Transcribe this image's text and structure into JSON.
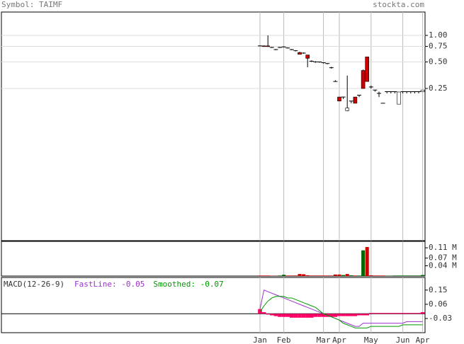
{
  "header": {
    "symbol": "Symbol: TAIMF",
    "site": "stockta.com"
  },
  "chart_data": [
    {
      "type": "candlestick",
      "categories": [
        "Jan",
        null,
        null,
        null,
        null,
        null,
        "Feb",
        null,
        null,
        null,
        null,
        null,
        null,
        null,
        null,
        null,
        "Mar",
        null,
        null,
        null,
        "Apr",
        null,
        null,
        null,
        null,
        null,
        null,
        null,
        "May",
        null,
        null,
        null,
        null,
        null,
        null,
        null,
        "Jun",
        null,
        null,
        null,
        null,
        "Apr"
      ],
      "open": [
        0.76,
        0.76,
        0.76,
        0.73,
        0.69,
        0.73,
        0.74,
        0.72,
        0.69,
        0.67,
        0.64,
        0.63,
        0.6,
        0.51,
        0.5,
        0.5,
        0.49,
        0.48,
        0.43,
        0.3,
        0.2,
        0.2,
        0.14,
        0.18,
        0.2,
        0.21,
        0.4,
        0.57,
        0.26,
        0.24,
        0.22,
        0.17,
        0.23,
        0.23,
        0.23,
        0.166,
        0.23,
        0.23,
        0.23,
        0.23,
        0.23,
        0.23
      ],
      "high": [
        0.77,
        0.77,
        1.0,
        0.74,
        0.7,
        0.74,
        0.75,
        0.73,
        0.7,
        0.68,
        0.65,
        0.64,
        0.6,
        0.52,
        0.51,
        0.5,
        0.49,
        0.48,
        0.44,
        0.31,
        0.2,
        0.2,
        0.35,
        0.18,
        0.2,
        0.21,
        0.41,
        0.57,
        0.27,
        0.24,
        0.23,
        0.17,
        0.23,
        0.23,
        0.23,
        0.23,
        0.23,
        0.23,
        0.23,
        0.23,
        0.23,
        0.24
      ],
      "low": [
        0.75,
        0.75,
        0.74,
        0.72,
        0.68,
        0.72,
        0.73,
        0.71,
        0.68,
        0.66,
        0.61,
        0.62,
        0.435,
        0.5,
        0.49,
        0.49,
        0.48,
        0.47,
        0.42,
        0.3,
        0.18,
        0.19,
        0.138,
        0.17,
        0.17,
        0.2,
        0.25,
        0.3,
        0.25,
        0.23,
        0.2,
        0.17,
        0.22,
        0.22,
        0.22,
        0.166,
        0.22,
        0.22,
        0.22,
        0.22,
        0.22,
        0.23
      ],
      "close": [
        0.76,
        0.75,
        0.75,
        0.73,
        0.69,
        0.73,
        0.74,
        0.72,
        0.69,
        0.67,
        0.61,
        0.63,
        0.55,
        0.51,
        0.5,
        0.5,
        0.49,
        0.48,
        0.43,
        0.3,
        0.18,
        0.2,
        0.15,
        0.18,
        0.17,
        0.21,
        0.25,
        0.3,
        0.26,
        0.24,
        0.22,
        0.17,
        0.23,
        0.23,
        0.23,
        0.228,
        0.23,
        0.23,
        0.23,
        0.23,
        0.23,
        0.24
      ],
      "up_color": "#ffffff",
      "down_color": "#cc0000",
      "log_scale": true,
      "ylim": [
        0.0047,
        1.84
      ],
      "yticks": [
        {
          "value": 1,
          "label": "1.00"
        },
        {
          "value": 0.75,
          "label": "0.75"
        },
        {
          "value": 0.5,
          "label": "0.50"
        },
        {
          "value": 0.25,
          "label": "0.25"
        }
      ],
      "grid": true
    },
    {
      "type": "bar",
      "values": [
        0.002,
        0.002,
        0.002,
        0.001,
        0.001,
        0.002,
        0.005,
        0.002,
        0.002,
        0.002,
        0.008,
        0.007,
        0.003,
        0.002,
        0.002,
        0.002,
        0.002,
        0.002,
        0.002,
        0.006,
        0.006,
        0.004,
        0.008,
        0.003,
        0.002,
        0.002,
        0.1,
        0.113,
        0.003,
        0.002,
        0.002,
        0.002,
        0.001,
        0.001,
        0.002,
        0.002,
        0.002,
        0.002,
        0.002,
        0.002,
        0.002,
        0.004
      ],
      "colors": [
        "#cc0000",
        "#cc0000",
        "#cc0000",
        "#cc0000",
        "#cc0000",
        "#006600",
        "#006600",
        "#cc0000",
        "#cc0000",
        "#cc0000",
        "#cc0000",
        "#cc0000",
        "#cc0000",
        "#cc0000",
        "#cc0000",
        "#cc0000",
        "#cc0000",
        "#cc0000",
        "#cc0000",
        "#cc0000",
        "#cc0000",
        "#006600",
        "#cc0000",
        "#006600",
        "#cc0000",
        "#006600",
        "#006600",
        "#cc0000",
        "#cc0000",
        "#cc0000",
        "#cc0000",
        "#cc0000",
        "#006600",
        "#006600",
        "#006600",
        "#006600",
        "#006600",
        "#006600",
        "#006600",
        "#006600",
        "#006600",
        "#006600"
      ],
      "ylim": [
        0,
        0.135
      ],
      "yticks": [
        {
          "value": 0.11,
          "label": "0.11 M"
        },
        {
          "value": 0.07,
          "label": "0.07 M"
        },
        {
          "value": 0.04,
          "label": "0.04 M"
        }
      ]
    },
    {
      "type": "macd",
      "title": "MACD(12-26-9)",
      "series": [
        {
          "name": "FastLine: -0.05",
          "color": "#9933cc",
          "values": [
            0.03,
            0.15,
            0.14,
            0.13,
            0.12,
            0.11,
            0.1,
            0.09,
            0.08,
            0.07,
            0.06,
            0.05,
            0.04,
            0.03,
            0.02,
            0.01,
            0.0,
            -0.01,
            -0.02,
            -0.03,
            -0.04,
            -0.05,
            -0.06,
            -0.07,
            -0.08,
            -0.08,
            -0.06,
            -0.06,
            -0.06,
            -0.06,
            -0.06,
            -0.06,
            -0.06,
            -0.06,
            -0.06,
            -0.06,
            -0.06,
            -0.05,
            -0.05,
            -0.05,
            -0.05,
            -0.05
          ]
        },
        {
          "name": "Smoothed: -0.07",
          "color": "#009900",
          "values": [
            0.01,
            0.05,
            0.08,
            0.1,
            0.11,
            0.11,
            0.11,
            0.1,
            0.1,
            0.09,
            0.08,
            0.07,
            0.06,
            0.05,
            0.04,
            0.02,
            0.0,
            -0.01,
            -0.02,
            -0.03,
            -0.04,
            -0.06,
            -0.07,
            -0.08,
            -0.09,
            -0.09,
            -0.09,
            -0.09,
            -0.08,
            -0.08,
            -0.08,
            -0.08,
            -0.08,
            -0.08,
            -0.08,
            -0.08,
            -0.07,
            -0.07,
            -0.07,
            -0.07,
            -0.07,
            -0.07
          ]
        }
      ],
      "histogram": {
        "color": "#ff0066",
        "values": [
          0.03,
          0.01,
          -0.005,
          -0.01,
          -0.015,
          -0.02,
          -0.02,
          -0.02,
          -0.025,
          -0.025,
          -0.025,
          -0.025,
          -0.025,
          -0.025,
          -0.02,
          -0.02,
          -0.02,
          -0.02,
          -0.02,
          -0.02,
          -0.015,
          -0.015,
          -0.015,
          -0.015,
          -0.015,
          -0.01,
          -0.01,
          -0.01,
          0.005,
          0.005,
          0.005,
          0.005,
          0.005,
          0.005,
          0.005,
          0.005,
          0.005,
          0.005,
          0.005,
          0.005,
          0.005,
          0.01
        ]
      },
      "ylim": [
        -0.12,
        0.23
      ],
      "yticks": [
        0.15,
        0.06,
        -0.03
      ]
    }
  ]
}
